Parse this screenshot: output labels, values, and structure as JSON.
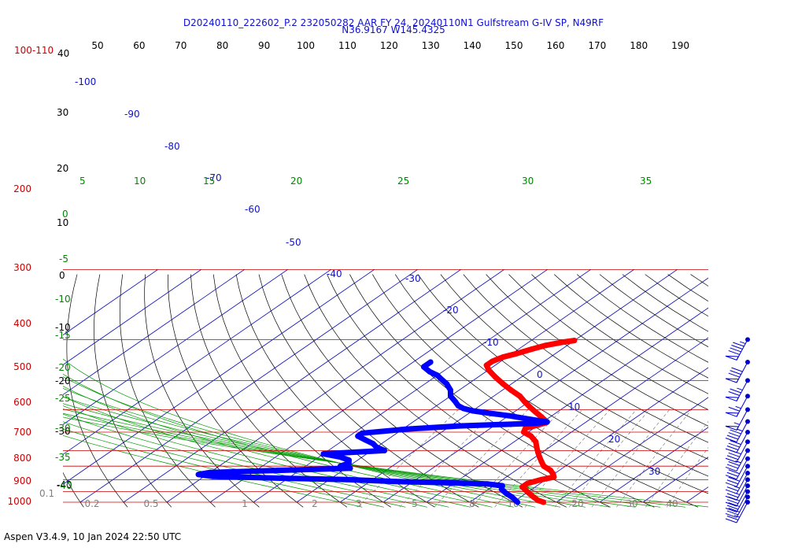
{
  "chart_data": {
    "type": "line",
    "title_line1": "D20240110_222602_P.2 232050282 AAR FY 24, 20240110N1 Gulfstream G-IV SP, N49RF",
    "title_line2": "N36.9167 W145.4325",
    "footer": "Aspen V3.4.9, 10 Jan 2024  22:50 UTC",
    "corner_top_label": "100-110",
    "corner_bottom_label": "0.1",
    "colors": {
      "isobar": "#cc0000",
      "isotherm": "#0000bb",
      "dry_adiabat": "#000000",
      "moist_adiabat": "#009900",
      "mixing_ratio": "#808080",
      "temperature": "#ff0000",
      "dewpoint": "#0000ff",
      "wind": "#0000cc"
    },
    "top_temperature_labels": [
      "50",
      "60",
      "70",
      "80",
      "90",
      "100",
      "110",
      "120",
      "130",
      "140",
      "150",
      "160",
      "170",
      "180",
      "190"
    ],
    "isobar_labels": [
      "100",
      "200",
      "300",
      "400",
      "500",
      "600",
      "700",
      "800",
      "900",
      "1000"
    ],
    "left_altitude_labels": [
      "40",
      "30",
      "20",
      "10",
      "0",
      "-10",
      "-20",
      "-30",
      "-40"
    ],
    "isotherm_labels": [
      "-100",
      "-90",
      "-80",
      "-70",
      "-60",
      "-50",
      "-40",
      "-30",
      "-20",
      "-10",
      "0",
      "10",
      "20",
      "30"
    ],
    "green_left_labels": [
      "0",
      "-5",
      "-10",
      "-15",
      "-20",
      "-25",
      "-30",
      "-35",
      "-40"
    ],
    "green_top_labels": [
      "5",
      "10",
      "15",
      "20",
      "25",
      "30",
      "35"
    ],
    "mixing_ratio_labels": [
      "0.2",
      "0.5",
      "1",
      "2",
      "3",
      "5",
      "8",
      "10",
      "20",
      "30",
      "40"
    ],
    "temperature_profile": [
      {
        "p": 202,
        "t": -40
      },
      {
        "p": 205,
        "t": -42
      },
      {
        "p": 212,
        "t": -45
      },
      {
        "p": 220,
        "t": -47
      },
      {
        "p": 230,
        "t": -49
      },
      {
        "p": 238,
        "t": -51
      },
      {
        "p": 248,
        "t": -52
      },
      {
        "p": 258,
        "t": -52
      },
      {
        "p": 270,
        "t": -50
      },
      {
        "p": 290,
        "t": -46
      },
      {
        "p": 310,
        "t": -42
      },
      {
        "p": 330,
        "t": -38
      },
      {
        "p": 350,
        "t": -34
      },
      {
        "p": 370,
        "t": -31
      },
      {
        "p": 390,
        "t": -28
      },
      {
        "p": 410,
        "t": -25
      },
      {
        "p": 430,
        "t": -22
      },
      {
        "p": 445,
        "t": -20
      },
      {
        "p": 455,
        "t": -19
      },
      {
        "p": 465,
        "t": -20
      },
      {
        "p": 480,
        "t": -22
      },
      {
        "p": 500,
        "t": -21
      },
      {
        "p": 520,
        "t": -18
      },
      {
        "p": 550,
        "t": -15
      },
      {
        "p": 580,
        "t": -13
      },
      {
        "p": 610,
        "t": -11
      },
      {
        "p": 640,
        "t": -9
      },
      {
        "p": 670,
        "t": -7
      },
      {
        "p": 700,
        "t": -5
      },
      {
        "p": 730,
        "t": -2
      },
      {
        "p": 760,
        "t": 0
      },
      {
        "p": 780,
        "t": 1
      },
      {
        "p": 800,
        "t": -1
      },
      {
        "p": 830,
        "t": -3
      },
      {
        "p": 860,
        "t": -3
      },
      {
        "p": 890,
        "t": -1
      },
      {
        "p": 920,
        "t": 1
      },
      {
        "p": 950,
        "t": 3
      },
      {
        "p": 980,
        "t": 5
      },
      {
        "p": 1000,
        "t": 7
      }
    ],
    "dewpoint_profile": [
      {
        "p": 250,
        "td": -66
      },
      {
        "p": 262,
        "td": -66
      },
      {
        "p": 275,
        "td": -63
      },
      {
        "p": 285,
        "td": -60
      },
      {
        "p": 295,
        "td": -58
      },
      {
        "p": 310,
        "td": -55
      },
      {
        "p": 330,
        "td": -52
      },
      {
        "p": 350,
        "td": -50
      },
      {
        "p": 370,
        "td": -47
      },
      {
        "p": 385,
        "td": -45
      },
      {
        "p": 395,
        "td": -43
      },
      {
        "p": 405,
        "td": -40
      },
      {
        "p": 415,
        "td": -35
      },
      {
        "p": 425,
        "td": -30
      },
      {
        "p": 435,
        "td": -26
      },
      {
        "p": 445,
        "td": -22
      },
      {
        "p": 452,
        "td": -19
      },
      {
        "p": 458,
        "td": -21
      },
      {
        "p": 470,
        "td": -38
      },
      {
        "p": 485,
        "td": -49
      },
      {
        "p": 505,
        "td": -58
      },
      {
        "p": 520,
        "td": -58
      },
      {
        "p": 540,
        "td": -55
      },
      {
        "p": 560,
        "td": -52
      },
      {
        "p": 580,
        "td": -50
      },
      {
        "p": 600,
        "td": -47
      },
      {
        "p": 620,
        "td": -60
      },
      {
        "p": 640,
        "td": -55
      },
      {
        "p": 660,
        "td": -52
      },
      {
        "p": 680,
        "td": -51
      },
      {
        "p": 700,
        "td": -52
      },
      {
        "p": 715,
        "td": -49
      },
      {
        "p": 730,
        "td": -65
      },
      {
        "p": 745,
        "td": -80
      },
      {
        "p": 760,
        "td": -82
      },
      {
        "p": 775,
        "td": -78
      },
      {
        "p": 790,
        "td": -60
      },
      {
        "p": 800,
        "td": -46
      },
      {
        "p": 815,
        "td": -34
      },
      {
        "p": 825,
        "td": -22
      },
      {
        "p": 835,
        "td": -12
      },
      {
        "p": 850,
        "td": -8
      },
      {
        "p": 880,
        "td": -7
      },
      {
        "p": 910,
        "td": -5
      },
      {
        "p": 950,
        "td": -2
      },
      {
        "p": 1000,
        "td": 1
      }
    ],
    "wind_barbs": [
      {
        "p": 200,
        "speed_kt": 95
      },
      {
        "p": 250,
        "speed_kt": 80
      },
      {
        "p": 300,
        "speed_kt": 75
      },
      {
        "p": 350,
        "speed_kt": 65
      },
      {
        "p": 400,
        "speed_kt": 55
      },
      {
        "p": 450,
        "speed_kt": 45
      },
      {
        "p": 500,
        "speed_kt": 40
      },
      {
        "p": 550,
        "speed_kt": 40
      },
      {
        "p": 600,
        "speed_kt": 35
      },
      {
        "p": 650,
        "speed_kt": 30
      },
      {
        "p": 700,
        "speed_kt": 30
      },
      {
        "p": 750,
        "speed_kt": 25
      },
      {
        "p": 800,
        "speed_kt": 25
      },
      {
        "p": 850,
        "speed_kt": 30
      },
      {
        "p": 900,
        "speed_kt": 30
      },
      {
        "p": 950,
        "speed_kt": 30
      },
      {
        "p": 1000,
        "speed_kt": 25
      }
    ]
  }
}
